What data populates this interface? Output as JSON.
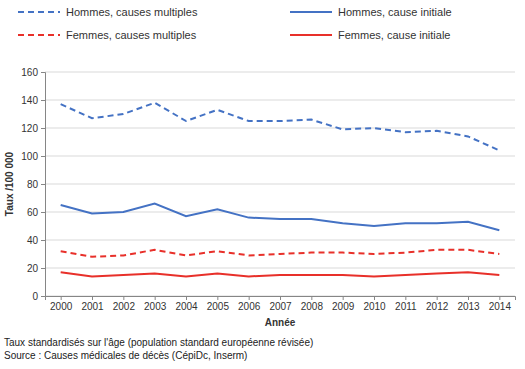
{
  "chart_data": {
    "type": "line",
    "x_label": "Année",
    "y_label": "Taux /100 000",
    "annotations": [
      "Taux standardisés sur l'âge (population standard européenne révisée)",
      "Source : Causes médicales de décès (CépiDc, Inserm)"
    ],
    "categories": [
      "2000",
      "2001",
      "2002",
      "2003",
      "2004",
      "2005",
      "2006",
      "2007",
      "2008",
      "2009",
      "2010",
      "2011",
      "2012",
      "2013",
      "2014"
    ],
    "series": [
      {
        "name": "Hommes, causes multiples",
        "color": "#4472c4",
        "line_style": "dashed",
        "values": [
          137,
          127,
          130,
          138,
          125,
          133,
          125,
          125,
          126,
          119,
          120,
          117,
          118,
          114,
          104
        ]
      },
      {
        "name": "Hommes, cause initiale",
        "color": "#4472c4",
        "line_style": "solid",
        "values": [
          65,
          59,
          60,
          66,
          57,
          62,
          56,
          55,
          55,
          52,
          50,
          52,
          52,
          53,
          47
        ]
      },
      {
        "name": "Femmes, causes multiples",
        "color": "#e8302a",
        "line_style": "dashed",
        "values": [
          32,
          28,
          29,
          33,
          29,
          32,
          29,
          30,
          31,
          31,
          30,
          31,
          33,
          33,
          30
        ]
      },
      {
        "name": "Femmes, cause initiale",
        "color": "#e8302a",
        "line_style": "solid",
        "values": [
          17,
          14,
          15,
          16,
          14,
          16,
          14,
          15,
          15,
          15,
          14,
          15,
          16,
          17,
          15
        ]
      }
    ],
    "ylim": [
      0,
      160
    ],
    "yticks": [
      0,
      20,
      40,
      60,
      80,
      100,
      120,
      140,
      160
    ],
    "grid": true,
    "legend": "top"
  }
}
